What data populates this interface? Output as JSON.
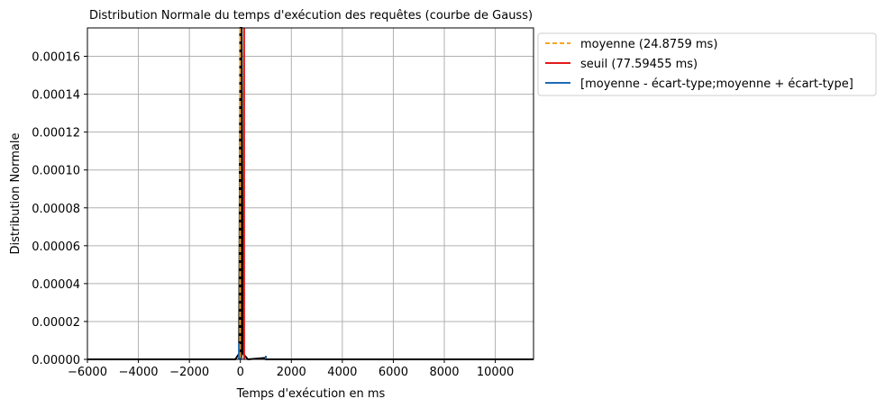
{
  "chart_data": {
    "type": "line",
    "title": "Distribution Normale du temps d'exécution des requêtes (courbe de Gauss)",
    "xlabel": "Temps d'exécution en ms",
    "ylabel": "Distribution Normale",
    "xlim": [
      -6000,
      11500
    ],
    "ylim": [
      0,
      0.000175
    ],
    "grid": true,
    "legend_position": "outside-upper-right",
    "x_ticks": [
      -6000,
      -4000,
      -2000,
      0,
      2000,
      4000,
      6000,
      8000,
      10000
    ],
    "x_tick_labels": [
      "−6000",
      "−4000",
      "−2000",
      "0",
      "2000",
      "4000",
      "6000",
      "8000",
      "10000"
    ],
    "y_ticks": [
      0,
      2e-05,
      4e-05,
      6e-05,
      8e-05,
      0.0001,
      0.00012,
      0.00014,
      0.00016
    ],
    "y_tick_labels": [
      "0.00000",
      "0.00002",
      "0.00004",
      "0.00006",
      "0.00008",
      "0.00010",
      "0.00012",
      "0.00014",
      "0.00016"
    ],
    "series": [
      {
        "name": "moyenne (24.8759 ms)",
        "kind": "vline",
        "x": 24.8759,
        "color": "#f5a623",
        "dash": true
      },
      {
        "name": "seuil (77.59455 ms)",
        "kind": "vline",
        "x": 77.59455,
        "color": "#e31a1c",
        "dash": false
      },
      {
        "name": "[moyenne - écart-type;moyenne + écart-type]",
        "kind": "segment",
        "x": [
          -20,
          70
        ],
        "y": 5e-07,
        "color": "#1f6bb5",
        "dash": false
      }
    ],
    "curve": {
      "color": "#000000",
      "mean": 24.8759,
      "std": 45,
      "points": [
        [
          -6000,
          0
        ],
        [
          -3000,
          0
        ],
        [
          -200,
          0
        ],
        [
          -50,
          3e-06
        ],
        [
          0,
          0.000175
        ],
        [
          50,
          0.000175
        ],
        [
          100,
          3e-06
        ],
        [
          300,
          0
        ],
        [
          1000,
          8e-07
        ],
        [
          1010,
          0
        ],
        [
          3000,
          0
        ],
        [
          6000,
          0
        ],
        [
          9000,
          0
        ],
        [
          11500,
          0
        ]
      ]
    }
  }
}
